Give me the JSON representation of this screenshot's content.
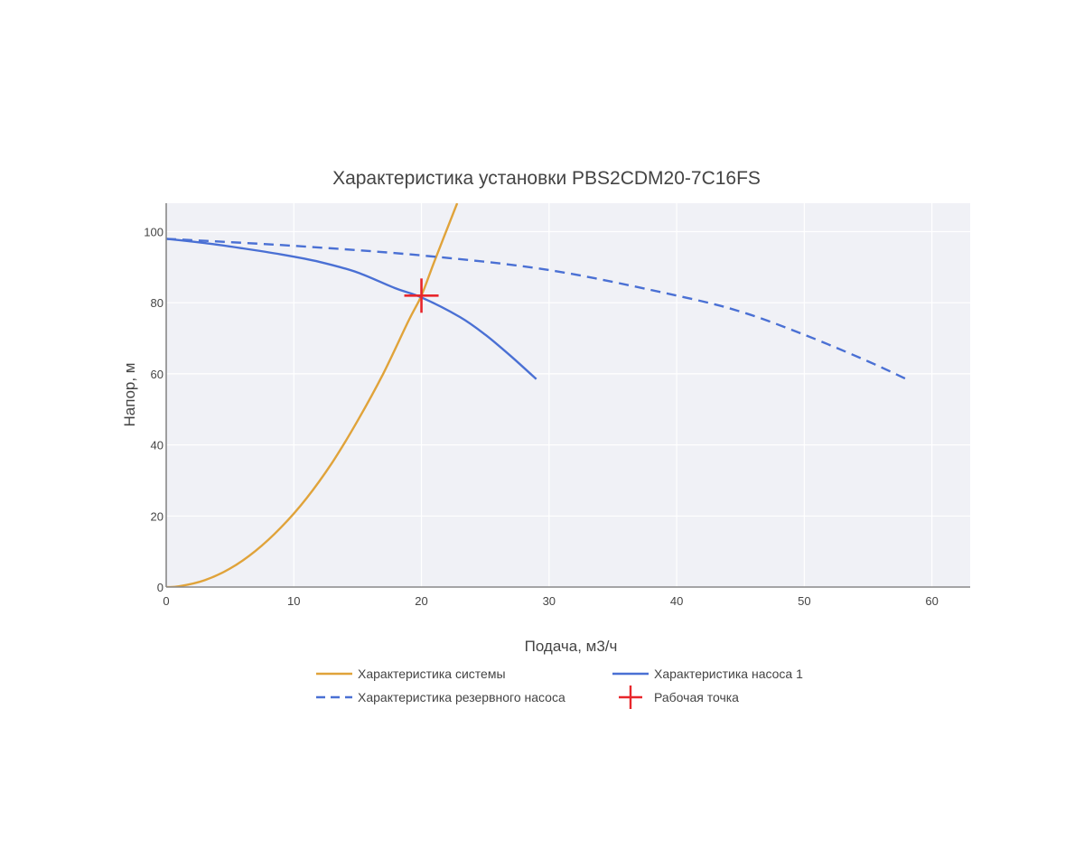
{
  "chart_data": {
    "type": "line",
    "title": "Характеристика установки PBS2CDM20-7C16FS",
    "xlabel": "Подача, м3/ч",
    "ylabel": "Напор, м",
    "xlim": [
      0,
      63
    ],
    "ylim": [
      0,
      108
    ],
    "xticks": [
      0,
      10,
      20,
      30,
      40,
      50,
      60
    ],
    "yticks": [
      0,
      20,
      40,
      60,
      80,
      100
    ],
    "grid": true,
    "legend_position": "bottom",
    "colors": {
      "plot_bg": "#f0f1f6",
      "grid": "#ffffff",
      "axis": "#888888"
    },
    "series": [
      {
        "name": "Характеристика системы",
        "style": "solid",
        "color": "#e0a33a",
        "points": [
          [
            0,
            0
          ],
          [
            1,
            0.2
          ],
          [
            3,
            1.9
          ],
          [
            5,
            5.2
          ],
          [
            7,
            10.2
          ],
          [
            9,
            16.8
          ],
          [
            11,
            25
          ],
          [
            13,
            35
          ],
          [
            15,
            46.8
          ],
          [
            17,
            60
          ],
          [
            19,
            75
          ],
          [
            20,
            82
          ],
          [
            21,
            91.5
          ],
          [
            22.8,
            108
          ]
        ]
      },
      {
        "name": "Характеристика насоса 1",
        "style": "solid",
        "color": "#4a70d4",
        "points": [
          [
            0,
            98
          ],
          [
            3,
            96.8
          ],
          [
            6,
            95.3
          ],
          [
            9,
            93.6
          ],
          [
            12,
            91.5
          ],
          [
            15,
            88.5
          ],
          [
            18,
            84
          ],
          [
            20,
            81.5
          ],
          [
            23,
            76
          ],
          [
            25,
            71
          ],
          [
            27,
            65
          ],
          [
            29,
            58.5
          ]
        ]
      },
      {
        "name": "Характеристика резервного насоса",
        "style": "dash",
        "color": "#4a70d4",
        "points": [
          [
            0,
            98
          ],
          [
            10,
            96
          ],
          [
            20,
            93.3
          ],
          [
            30,
            89.2
          ],
          [
            40,
            82
          ],
          [
            45,
            77.5
          ],
          [
            50,
            71
          ],
          [
            55,
            63.5
          ],
          [
            58,
            58.5
          ]
        ]
      },
      {
        "name": "Рабочая точка",
        "style": "marker-cross",
        "color": "#e8262b",
        "points": [
          [
            20,
            82
          ]
        ]
      }
    ]
  }
}
